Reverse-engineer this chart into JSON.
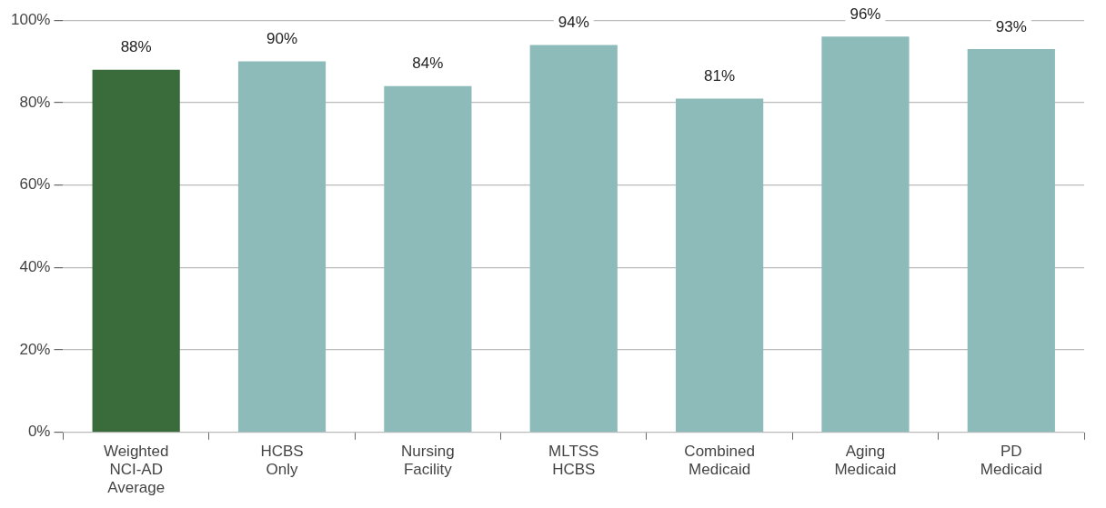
{
  "chart_data": {
    "type": "bar",
    "categories": [
      "Weighted NCI-AD Average",
      "HCBS Only",
      "Nursing Facility",
      "MLTSS HCBS",
      "Combined Medicaid",
      "Aging Medicaid",
      "PD Medicaid"
    ],
    "values": [
      88,
      90,
      84,
      94,
      81,
      96,
      93
    ],
    "value_labels": [
      "88%",
      "90%",
      "84%",
      "94%",
      "81%",
      "96%",
      "93%"
    ],
    "colors": [
      "#3a6b3a",
      "#8dbbba",
      "#8dbbba",
      "#8dbbba",
      "#8dbbba",
      "#8dbbba",
      "#8dbbba"
    ],
    "ylim": [
      0,
      100
    ],
    "yticks": [
      {
        "value": 0,
        "label": "0%"
      },
      {
        "value": 20,
        "label": "20%"
      },
      {
        "value": 40,
        "label": "40%"
      },
      {
        "value": 60,
        "label": "60%"
      },
      {
        "value": 80,
        "label": "80%"
      },
      {
        "value": 100,
        "label": "100%"
      }
    ],
    "grid": "y",
    "legend": false
  }
}
